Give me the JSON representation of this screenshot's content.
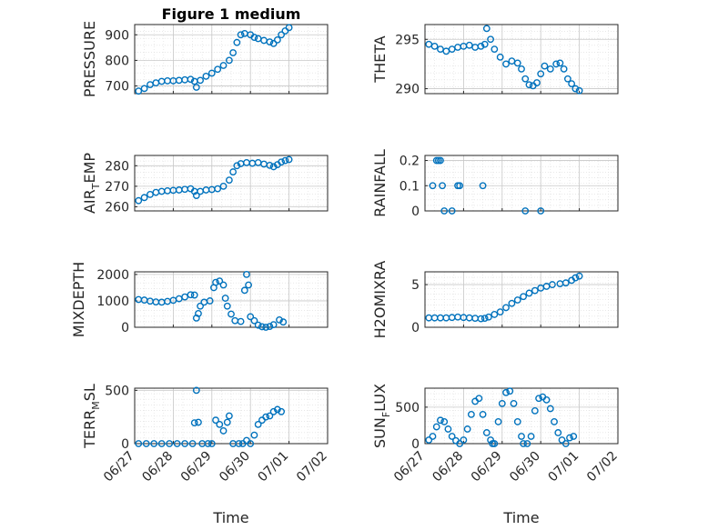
{
  "colors": {
    "marker": "#0072BD",
    "axis": "#262626",
    "grid": "#c8c8c8",
    "minor_grid": "#dcdcdc"
  },
  "chart_data": [
    {
      "type": "scatter",
      "title": "Figure 1 medium",
      "ylabel": "PRESSURE",
      "xlabel": "",
      "ylim": [
        670,
        940
      ],
      "yticks": [
        700,
        800,
        900
      ],
      "xlim": [
        "06/27",
        "07/02"
      ],
      "x_days": [],
      "values_by_day": {}
    },
    {
      "type": "scatter",
      "title": "",
      "ylabel": "THETA",
      "xlabel": "",
      "ylim": [
        289.5,
        296.5
      ],
      "yticks": [
        290,
        295
      ],
      "xlim": [
        "06/27",
        "07/02"
      ]
    },
    {
      "type": "scatter",
      "title": "",
      "ylabel": "AIR_TEMP",
      "ylabel_sub": "T",
      "xlabel": "",
      "ylim": [
        258,
        285
      ],
      "yticks": [
        260,
        270,
        280
      ],
      "xlim": [
        "06/27",
        "07/02"
      ]
    },
    {
      "type": "scatter",
      "title": "",
      "ylabel": "RAINFALL",
      "xlabel": "",
      "ylim": [
        0,
        0.22
      ],
      "yticks": [
        0,
        0.1,
        0.2
      ],
      "xlim": [
        "06/27",
        "07/02"
      ]
    },
    {
      "type": "scatter",
      "title": "",
      "ylabel": "MIXDEPTH",
      "xlabel": "",
      "ylim": [
        0,
        2100
      ],
      "yticks": [
        0,
        1000,
        2000
      ],
      "xlim": [
        "06/27",
        "07/02"
      ]
    },
    {
      "type": "scatter",
      "title": "",
      "ylabel": "H2OMIXRA",
      "xlabel": "",
      "ylim": [
        0,
        6.5
      ],
      "yticks": [
        0,
        5
      ],
      "xlim": [
        "06/27",
        "07/02"
      ]
    },
    {
      "type": "scatter",
      "title": "",
      "ylabel": "TERR_MSL",
      "ylabel_sub": "M",
      "xlabel": "Time",
      "ylim": [
        0,
        520
      ],
      "yticks": [
        0,
        500
      ],
      "xlim": [
        "06/27",
        "07/02"
      ],
      "xticks": [
        "06/27",
        "06/28",
        "06/29",
        "06/30",
        "07/01",
        "07/02"
      ]
    },
    {
      "type": "scatter",
      "title": "",
      "ylabel": "SUN_FLUX",
      "ylabel_sub": "F",
      "xlabel": "Time",
      "ylim": [
        0,
        760
      ],
      "yticks": [
        0,
        500
      ],
      "xlim": [
        "06/27",
        "07/02"
      ],
      "xticks": [
        "06/27",
        "06/28",
        "06/29",
        "06/30",
        "07/01",
        "07/02"
      ]
    }
  ],
  "series": {
    "pressure": [
      [
        0.1,
        680
      ],
      [
        0.25,
        690
      ],
      [
        0.4,
        705
      ],
      [
        0.55,
        712
      ],
      [
        0.7,
        718
      ],
      [
        0.85,
        720
      ],
      [
        1.0,
        720
      ],
      [
        1.15,
        722
      ],
      [
        1.3,
        724
      ],
      [
        1.45,
        726
      ],
      [
        1.55,
        718
      ],
      [
        1.6,
        695
      ],
      [
        1.7,
        722
      ],
      [
        1.85,
        738
      ],
      [
        2.0,
        750
      ],
      [
        2.15,
        765
      ],
      [
        2.3,
        780
      ],
      [
        2.45,
        800
      ],
      [
        2.55,
        830
      ],
      [
        2.65,
        870
      ],
      [
        2.75,
        900
      ],
      [
        2.85,
        905
      ],
      [
        3.0,
        900
      ],
      [
        3.1,
        890
      ],
      [
        3.2,
        885
      ],
      [
        3.35,
        878
      ],
      [
        3.5,
        872
      ],
      [
        3.6,
        866
      ],
      [
        3.7,
        880
      ],
      [
        3.8,
        900
      ],
      [
        3.9,
        915
      ],
      [
        4.0,
        928
      ]
    ],
    "theta": [
      [
        0.1,
        294.5
      ],
      [
        0.25,
        294.3
      ],
      [
        0.4,
        294.0
      ],
      [
        0.55,
        293.8
      ],
      [
        0.7,
        294.0
      ],
      [
        0.85,
        294.2
      ],
      [
        1.0,
        294.3
      ],
      [
        1.15,
        294.4
      ],
      [
        1.3,
        294.2
      ],
      [
        1.45,
        294.3
      ],
      [
        1.55,
        294.5
      ],
      [
        1.6,
        296.1
      ],
      [
        1.7,
        295.0
      ],
      [
        1.8,
        294.0
      ],
      [
        1.95,
        293.2
      ],
      [
        2.1,
        292.5
      ],
      [
        2.25,
        292.8
      ],
      [
        2.4,
        292.6
      ],
      [
        2.5,
        292.0
      ],
      [
        2.6,
        291.0
      ],
      [
        2.7,
        290.4
      ],
      [
        2.8,
        290.3
      ],
      [
        2.9,
        290.6
      ],
      [
        3.0,
        291.5
      ],
      [
        3.1,
        292.3
      ],
      [
        3.25,
        292.0
      ],
      [
        3.4,
        292.5
      ],
      [
        3.5,
        292.6
      ],
      [
        3.6,
        292.0
      ],
      [
        3.7,
        291.0
      ],
      [
        3.8,
        290.5
      ],
      [
        3.9,
        290.0
      ],
      [
        4.0,
        289.8
      ]
    ],
    "air_temp": [
      [
        0.1,
        263
      ],
      [
        0.25,
        264.5
      ],
      [
        0.4,
        266
      ],
      [
        0.55,
        267
      ],
      [
        0.7,
        267.5
      ],
      [
        0.85,
        267.8
      ],
      [
        1.0,
        268
      ],
      [
        1.15,
        268.2
      ],
      [
        1.3,
        268.5
      ],
      [
        1.45,
        268.8
      ],
      [
        1.55,
        267.5
      ],
      [
        1.6,
        265.5
      ],
      [
        1.7,
        267.5
      ],
      [
        1.85,
        268.2
      ],
      [
        2.0,
        268.4
      ],
      [
        2.15,
        268.8
      ],
      [
        2.3,
        270
      ],
      [
        2.45,
        273
      ],
      [
        2.55,
        277
      ],
      [
        2.65,
        280
      ],
      [
        2.75,
        281
      ],
      [
        2.9,
        281.5
      ],
      [
        3.05,
        281.2
      ],
      [
        3.2,
        281.5
      ],
      [
        3.35,
        280.8
      ],
      [
        3.5,
        280.2
      ],
      [
        3.6,
        279.5
      ],
      [
        3.7,
        280.5
      ],
      [
        3.8,
        281.8
      ],
      [
        3.9,
        282.5
      ],
      [
        4.0,
        283
      ]
    ],
    "rainfall": [
      [
        0.2,
        0.1
      ],
      [
        0.3,
        0.2
      ],
      [
        0.35,
        0.2
      ],
      [
        0.4,
        0.2
      ],
      [
        0.45,
        0.1
      ],
      [
        0.5,
        0.0
      ],
      [
        0.7,
        0.0
      ],
      [
        0.85,
        0.1
      ],
      [
        0.9,
        0.1
      ],
      [
        1.5,
        0.1
      ],
      [
        2.6,
        0.0
      ],
      [
        3.0,
        0.0
      ]
    ],
    "mixdepth": [
      [
        0.1,
        1050
      ],
      [
        0.25,
        1030
      ],
      [
        0.4,
        990
      ],
      [
        0.55,
        960
      ],
      [
        0.7,
        950
      ],
      [
        0.85,
        980
      ],
      [
        1.0,
        1020
      ],
      [
        1.15,
        1080
      ],
      [
        1.3,
        1150
      ],
      [
        1.45,
        1230
      ],
      [
        1.55,
        1220
      ],
      [
        1.6,
        350
      ],
      [
        1.65,
        520
      ],
      [
        1.7,
        800
      ],
      [
        1.8,
        950
      ],
      [
        1.95,
        1000
      ],
      [
        2.05,
        1500
      ],
      [
        2.1,
        1700
      ],
      [
        2.2,
        1750
      ],
      [
        2.3,
        1600
      ],
      [
        2.35,
        1100
      ],
      [
        2.4,
        800
      ],
      [
        2.5,
        500
      ],
      [
        2.6,
        250
      ],
      [
        2.75,
        220
      ],
      [
        2.85,
        1400
      ],
      [
        2.9,
        2000
      ],
      [
        2.95,
        1600
      ],
      [
        3.0,
        400
      ],
      [
        3.1,
        250
      ],
      [
        3.2,
        80
      ],
      [
        3.3,
        20
      ],
      [
        3.4,
        0
      ],
      [
        3.5,
        30
      ],
      [
        3.6,
        100
      ],
      [
        3.75,
        280
      ],
      [
        3.85,
        200
      ]
    ],
    "h2omixra": [
      [
        0.1,
        1.1
      ],
      [
        0.25,
        1.1
      ],
      [
        0.4,
        1.1
      ],
      [
        0.55,
        1.1
      ],
      [
        0.7,
        1.15
      ],
      [
        0.85,
        1.2
      ],
      [
        1.0,
        1.15
      ],
      [
        1.15,
        1.1
      ],
      [
        1.3,
        1.05
      ],
      [
        1.45,
        1.0
      ],
      [
        1.55,
        1.05
      ],
      [
        1.65,
        1.2
      ],
      [
        1.8,
        1.5
      ],
      [
        1.95,
        1.8
      ],
      [
        2.1,
        2.3
      ],
      [
        2.25,
        2.8
      ],
      [
        2.4,
        3.2
      ],
      [
        2.55,
        3.6
      ],
      [
        2.7,
        4.0
      ],
      [
        2.85,
        4.3
      ],
      [
        3.0,
        4.6
      ],
      [
        3.15,
        4.8
      ],
      [
        3.3,
        5.0
      ],
      [
        3.5,
        5.1
      ],
      [
        3.65,
        5.2
      ],
      [
        3.8,
        5.5
      ],
      [
        3.9,
        5.8
      ],
      [
        4.0,
        6.0
      ]
    ],
    "terr_msl": [
      [
        0.1,
        0
      ],
      [
        0.3,
        0
      ],
      [
        0.5,
        0
      ],
      [
        0.7,
        0
      ],
      [
        0.9,
        0
      ],
      [
        1.1,
        0
      ],
      [
        1.3,
        0
      ],
      [
        1.5,
        0
      ],
      [
        1.55,
        195
      ],
      [
        1.6,
        500
      ],
      [
        1.65,
        200
      ],
      [
        1.75,
        0
      ],
      [
        1.9,
        0
      ],
      [
        2.0,
        0
      ],
      [
        2.1,
        220
      ],
      [
        2.2,
        180
      ],
      [
        2.3,
        120
      ],
      [
        2.4,
        200
      ],
      [
        2.45,
        260
      ],
      [
        2.55,
        0
      ],
      [
        2.7,
        0
      ],
      [
        2.8,
        0
      ],
      [
        2.9,
        30
      ],
      [
        3.0,
        0
      ],
      [
        3.1,
        80
      ],
      [
        3.2,
        180
      ],
      [
        3.3,
        220
      ],
      [
        3.4,
        250
      ],
      [
        3.5,
        260
      ],
      [
        3.6,
        300
      ],
      [
        3.7,
        320
      ],
      [
        3.8,
        300
      ]
    ],
    "sun_flux": [
      [
        0.1,
        50
      ],
      [
        0.2,
        100
      ],
      [
        0.3,
        230
      ],
      [
        0.4,
        320
      ],
      [
        0.5,
        300
      ],
      [
        0.6,
        200
      ],
      [
        0.7,
        100
      ],
      [
        0.8,
        40
      ],
      [
        0.9,
        0
      ],
      [
        1.0,
        50
      ],
      [
        1.1,
        200
      ],
      [
        1.2,
        400
      ],
      [
        1.3,
        580
      ],
      [
        1.4,
        620
      ],
      [
        1.5,
        400
      ],
      [
        1.6,
        150
      ],
      [
        1.7,
        50
      ],
      [
        1.75,
        0
      ],
      [
        1.8,
        0
      ],
      [
        1.9,
        300
      ],
      [
        2.0,
        550
      ],
      [
        2.1,
        700
      ],
      [
        2.2,
        720
      ],
      [
        2.3,
        550
      ],
      [
        2.4,
        300
      ],
      [
        2.5,
        100
      ],
      [
        2.55,
        0
      ],
      [
        2.65,
        0
      ],
      [
        2.75,
        100
      ],
      [
        2.85,
        450
      ],
      [
        2.95,
        620
      ],
      [
        3.05,
        640
      ],
      [
        3.15,
        600
      ],
      [
        3.25,
        480
      ],
      [
        3.35,
        300
      ],
      [
        3.45,
        150
      ],
      [
        3.55,
        50
      ],
      [
        3.65,
        0
      ],
      [
        3.75,
        80
      ],
      [
        3.85,
        100
      ]
    ]
  }
}
